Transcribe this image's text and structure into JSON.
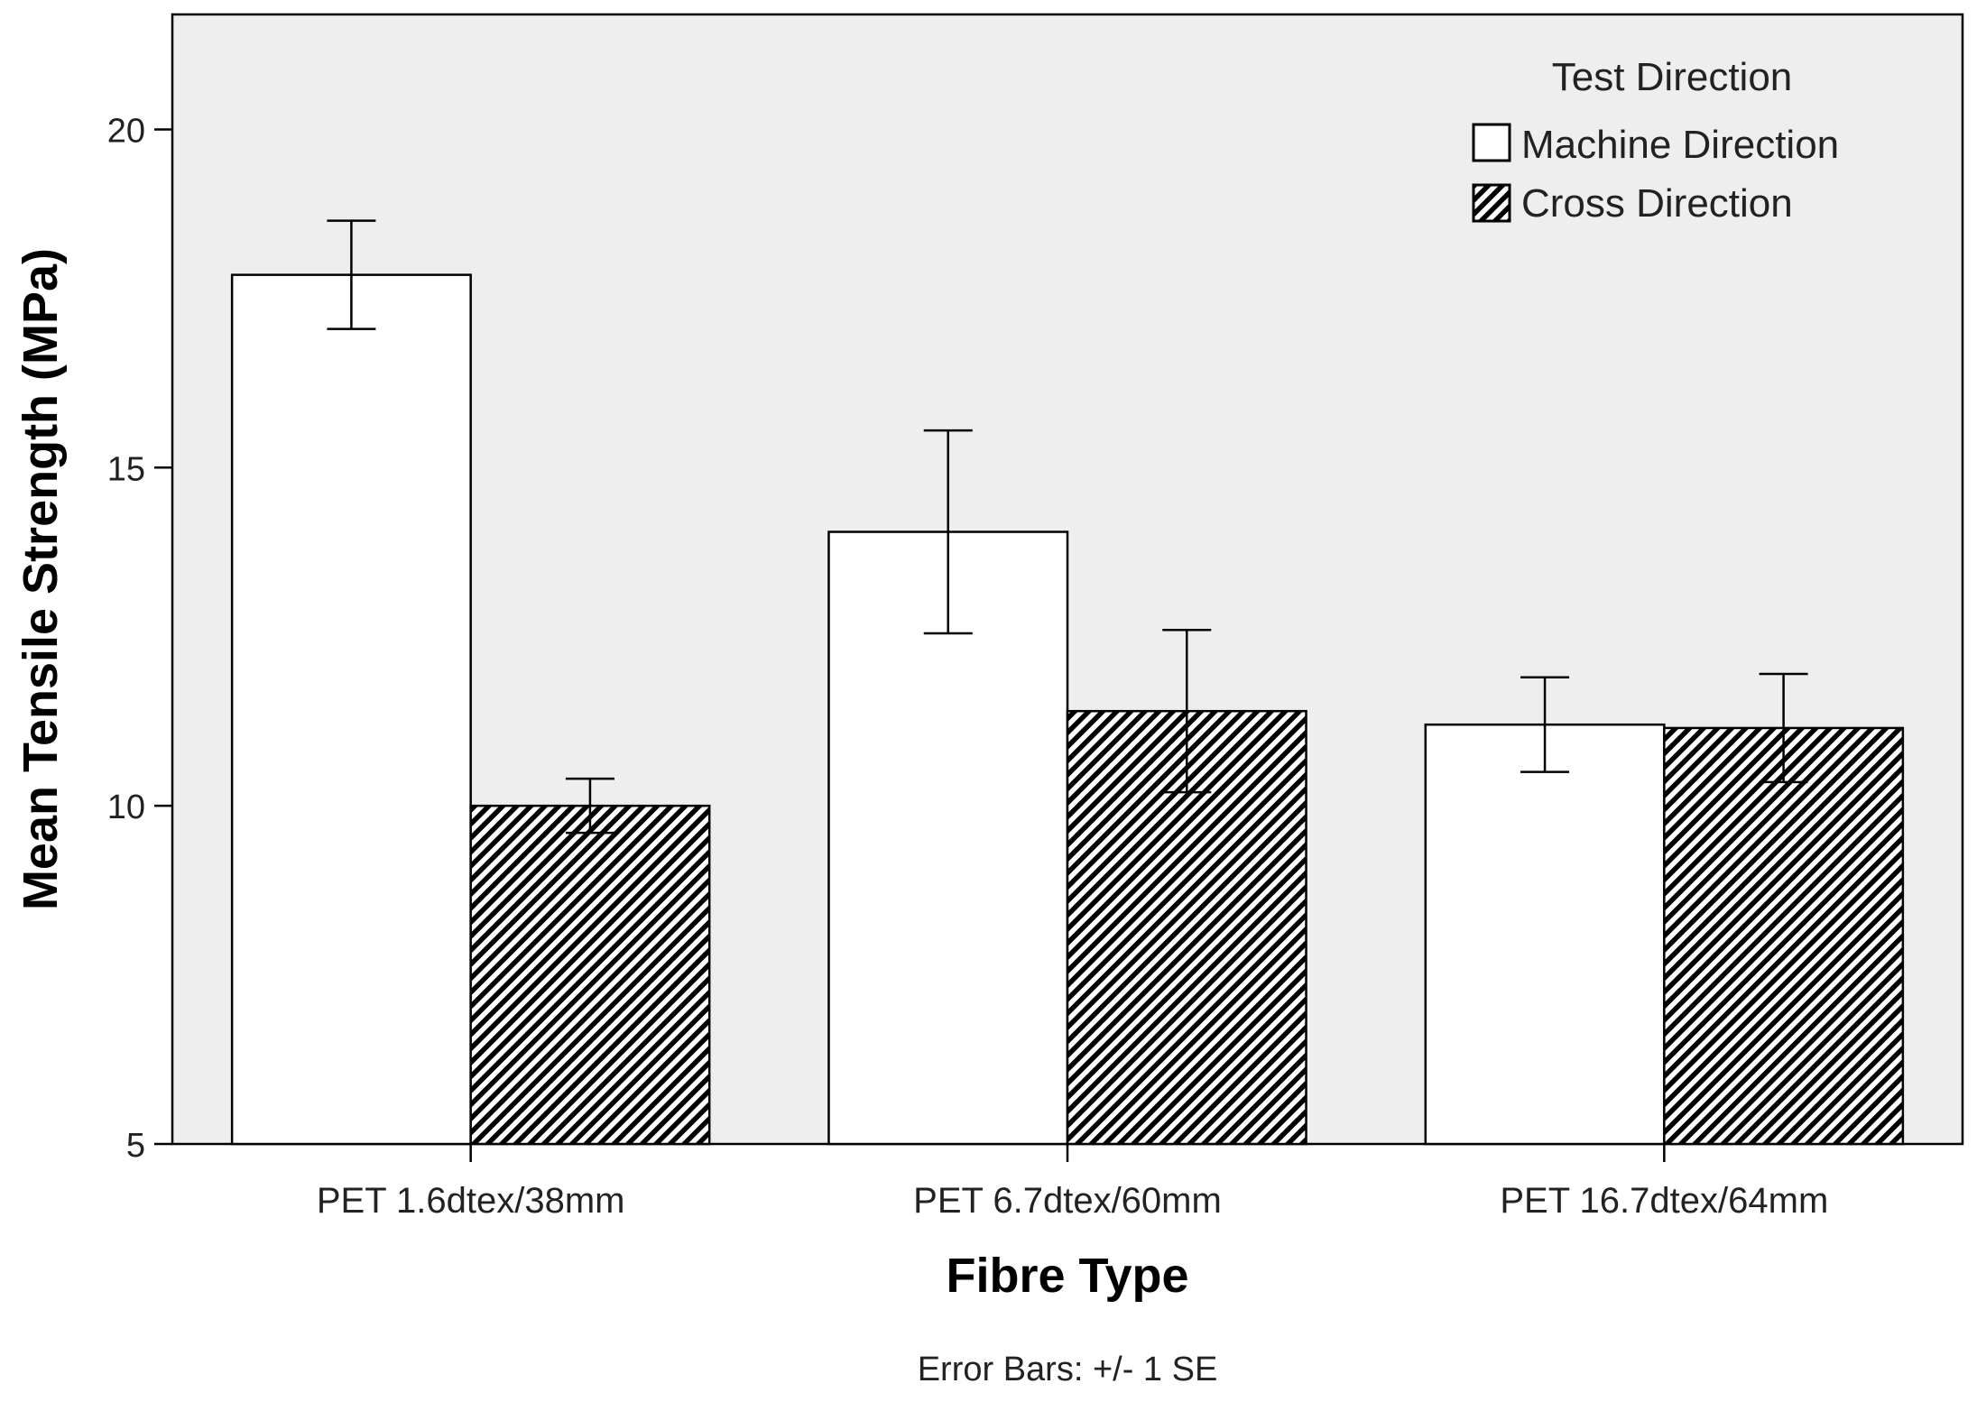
{
  "chart_data": {
    "type": "bar",
    "title": "",
    "xlabel": "Fibre Type",
    "ylabel": "Mean Tensile Strength (MPa)",
    "ylim": [
      5,
      21.7
    ],
    "yticks": [
      5,
      10,
      15,
      20
    ],
    "grid": false,
    "categories": [
      "PET 1.6dtex/38mm",
      "PET 6.7dtex/60mm",
      "PET 16.7dtex/64mm"
    ],
    "series": [
      {
        "name": "Machine Direction",
        "pattern": "solid",
        "fill": "#ffffff",
        "values": [
          17.85,
          14.05,
          11.2
        ],
        "error_low": [
          17.05,
          12.55,
          10.5
        ],
        "error_high": [
          18.65,
          15.55,
          11.9
        ]
      },
      {
        "name": "Cross Direction",
        "pattern": "hatched",
        "fill": "#000000",
        "values": [
          10.0,
          11.4,
          11.15
        ],
        "error_low": [
          9.6,
          10.2,
          10.35
        ],
        "error_high": [
          10.4,
          12.6,
          11.95
        ]
      }
    ],
    "legend": {
      "title": "Test Direction",
      "position": "top-right"
    },
    "note": "Error Bars: +/- 1 SE",
    "colors": {
      "plot_background": "#eeeeee",
      "axis": "#000000"
    }
  }
}
